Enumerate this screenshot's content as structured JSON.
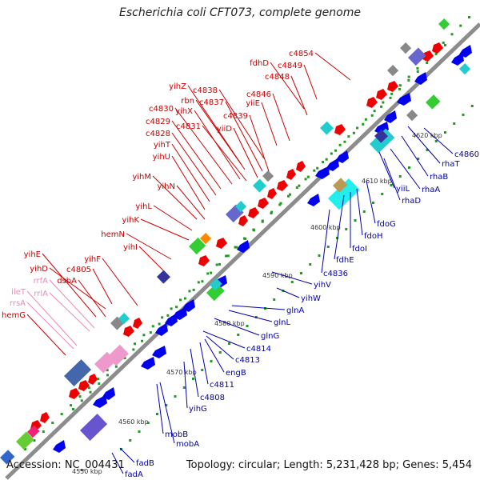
{
  "title": "Escherichia coli CFT073, complete genome",
  "footer": {
    "accession": "Accession: NC_004431",
    "summary": "Topology: circular; Length: 5,231,428 bp; Genes: 5,454"
  },
  "colors": {
    "backbone": "#8c8c8c",
    "forward_label": "#cc0000",
    "reverse_label": "#0000aa",
    "rna_label": "#ee88bb",
    "forward_gene": "#ee0000",
    "reverse_gene": "#0000ee",
    "ticks": "#229922"
  },
  "ticks": [
    "4550 kbp",
    "4560 kbp",
    "4570 kbp",
    "4580 kbp",
    "4590 kbp",
    "4600 kbp",
    "4610 kbp",
    "4620 kbp"
  ],
  "forward_labels": [
    "c4854",
    "c4849",
    "fdhD",
    "c4848",
    "c4846",
    "yiiE",
    "c4838",
    "yihZ",
    "rbn",
    "c4837",
    "yihX",
    "c4830",
    "c4839",
    "c4829",
    "c4831",
    "yiiD",
    "c4828",
    "yihT",
    "yihU",
    "yihM",
    "yihN",
    "yihL",
    "yihK",
    "hemN",
    "yihI",
    "yihF",
    "c4805",
    "yihE",
    "yihD",
    "dsbA",
    "hemG"
  ],
  "rna_labels": [
    "rrfA",
    "rrlA",
    "ileT",
    "rrsA"
  ],
  "reverse_labels": [
    "c4860",
    "rhaT",
    "rhaB",
    "rhaA",
    "yiiL",
    "rhaD",
    "fdoG",
    "fdoH",
    "fdoI",
    "fdhE",
    "c4836",
    "yihV",
    "yihW",
    "glnA",
    "glnL",
    "glnG",
    "c4814",
    "c4813",
    "engB",
    "c4811",
    "c4808",
    "yihG",
    "mobA",
    "mobB",
    "fadB",
    "fadA"
  ]
}
